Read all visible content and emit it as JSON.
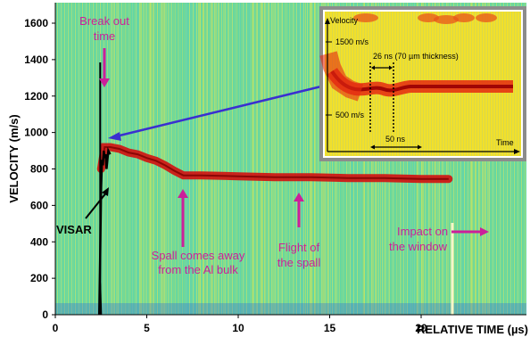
{
  "chart_data": {
    "type": "heatmap",
    "xlabel": "RELATIVE TIME (µs)",
    "ylabel": "VELOCITY (m/s)",
    "xlim": [
      0,
      22.5
    ],
    "ylim": [
      0,
      1700
    ],
    "x_ticks": [
      "0",
      "5",
      "10",
      "15",
      "20"
    ],
    "y_ticks": [
      "0",
      "200",
      "400",
      "600",
      "800",
      "1000",
      "1200",
      "1400",
      "1600"
    ],
    "velocity_trace": {
      "x": [
        2.5,
        2.7,
        3.0,
        3.5,
        4.0,
        4.5,
        5.0,
        5.5,
        6.0,
        6.5,
        7.0,
        8.0,
        10.0,
        12.0,
        14.0,
        16.0,
        18.0,
        20.0,
        21.5
      ],
      "y": [
        800,
        920,
        920,
        910,
        890,
        880,
        860,
        845,
        820,
        790,
        765,
        765,
        760,
        755,
        755,
        750,
        750,
        745,
        745
      ]
    },
    "visar_trace": {
      "x": [
        2.4,
        2.45,
        2.5,
        2.55,
        2.6,
        2.65,
        2.7,
        2.75,
        2.8,
        2.85,
        2.9,
        3.0
      ],
      "y": [
        0,
        300,
        700,
        850,
        820,
        900,
        860,
        880,
        800,
        850,
        900,
        880
      ]
    },
    "break_out_time": 2.6,
    "impact_time": 21.9,
    "colors": {
      "background": "#5fd7a8",
      "trace": "#d11010",
      "annotation": "#cc1f9a",
      "arrow_blue": "#3a2fd0"
    },
    "annotations": {
      "break_out": [
        "Break out",
        "time"
      ],
      "visar": "VISAR",
      "spall": [
        "Spall comes away",
        "from the Al bulk"
      ],
      "flight": [
        "Flight of",
        "the spall"
      ],
      "impact": [
        "Impact on",
        "the window"
      ]
    },
    "inset": {
      "ylabel": "Velocity",
      "xlabel": "Time",
      "y_tick_1500": "1500 m/s",
      "y_tick_500": "500 m/s",
      "label_26ns": "26 ns (70 µm thickness)",
      "label_50ns": "50 ns"
    }
  }
}
